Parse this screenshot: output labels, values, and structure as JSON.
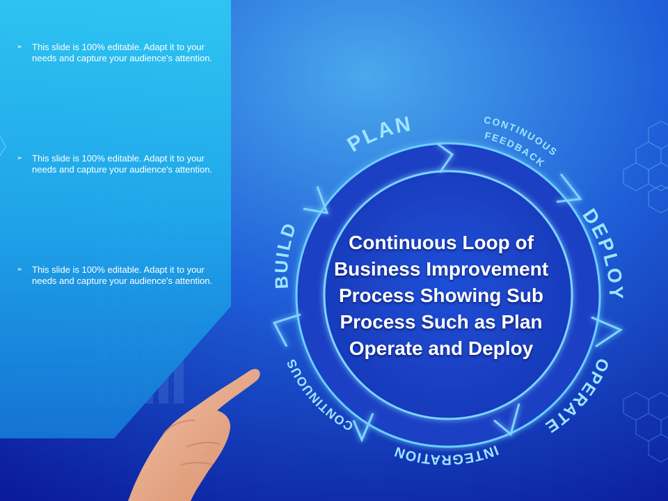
{
  "bullets": [
    {
      "marker": "➢",
      "text": "This slide is 100% editable. Adapt it to your needs and capture your audience's attention."
    },
    {
      "marker": "➢",
      "text": "This slide is 100% editable. Adapt it to your needs and capture your audience's attention."
    },
    {
      "marker": "➢",
      "text": "This slide is 100% editable. Adapt it to your needs and capture your audience's attention."
    }
  ],
  "title": "Continuous Loop of Business Improvement Process Showing Sub Process Such as Plan Operate and Deploy",
  "cycle": {
    "plan": "PLAN",
    "continuous_feedback_1": "CONTINUOUS",
    "continuous_feedback_2": "FEEDBACK",
    "deploy": "DEPLOY",
    "operate": "OPERATE",
    "integration": "INTEGRATION",
    "continuous": "CONTINUOUS",
    "build": "BUILD"
  },
  "colors": {
    "background_top": "#3aa0e8",
    "background_bottom": "#0a1a9a",
    "panel": "#2ec4f0",
    "ring": "#1f4ed8",
    "ring_glow": "#7fd4ff",
    "label": "#9ee6ff"
  }
}
